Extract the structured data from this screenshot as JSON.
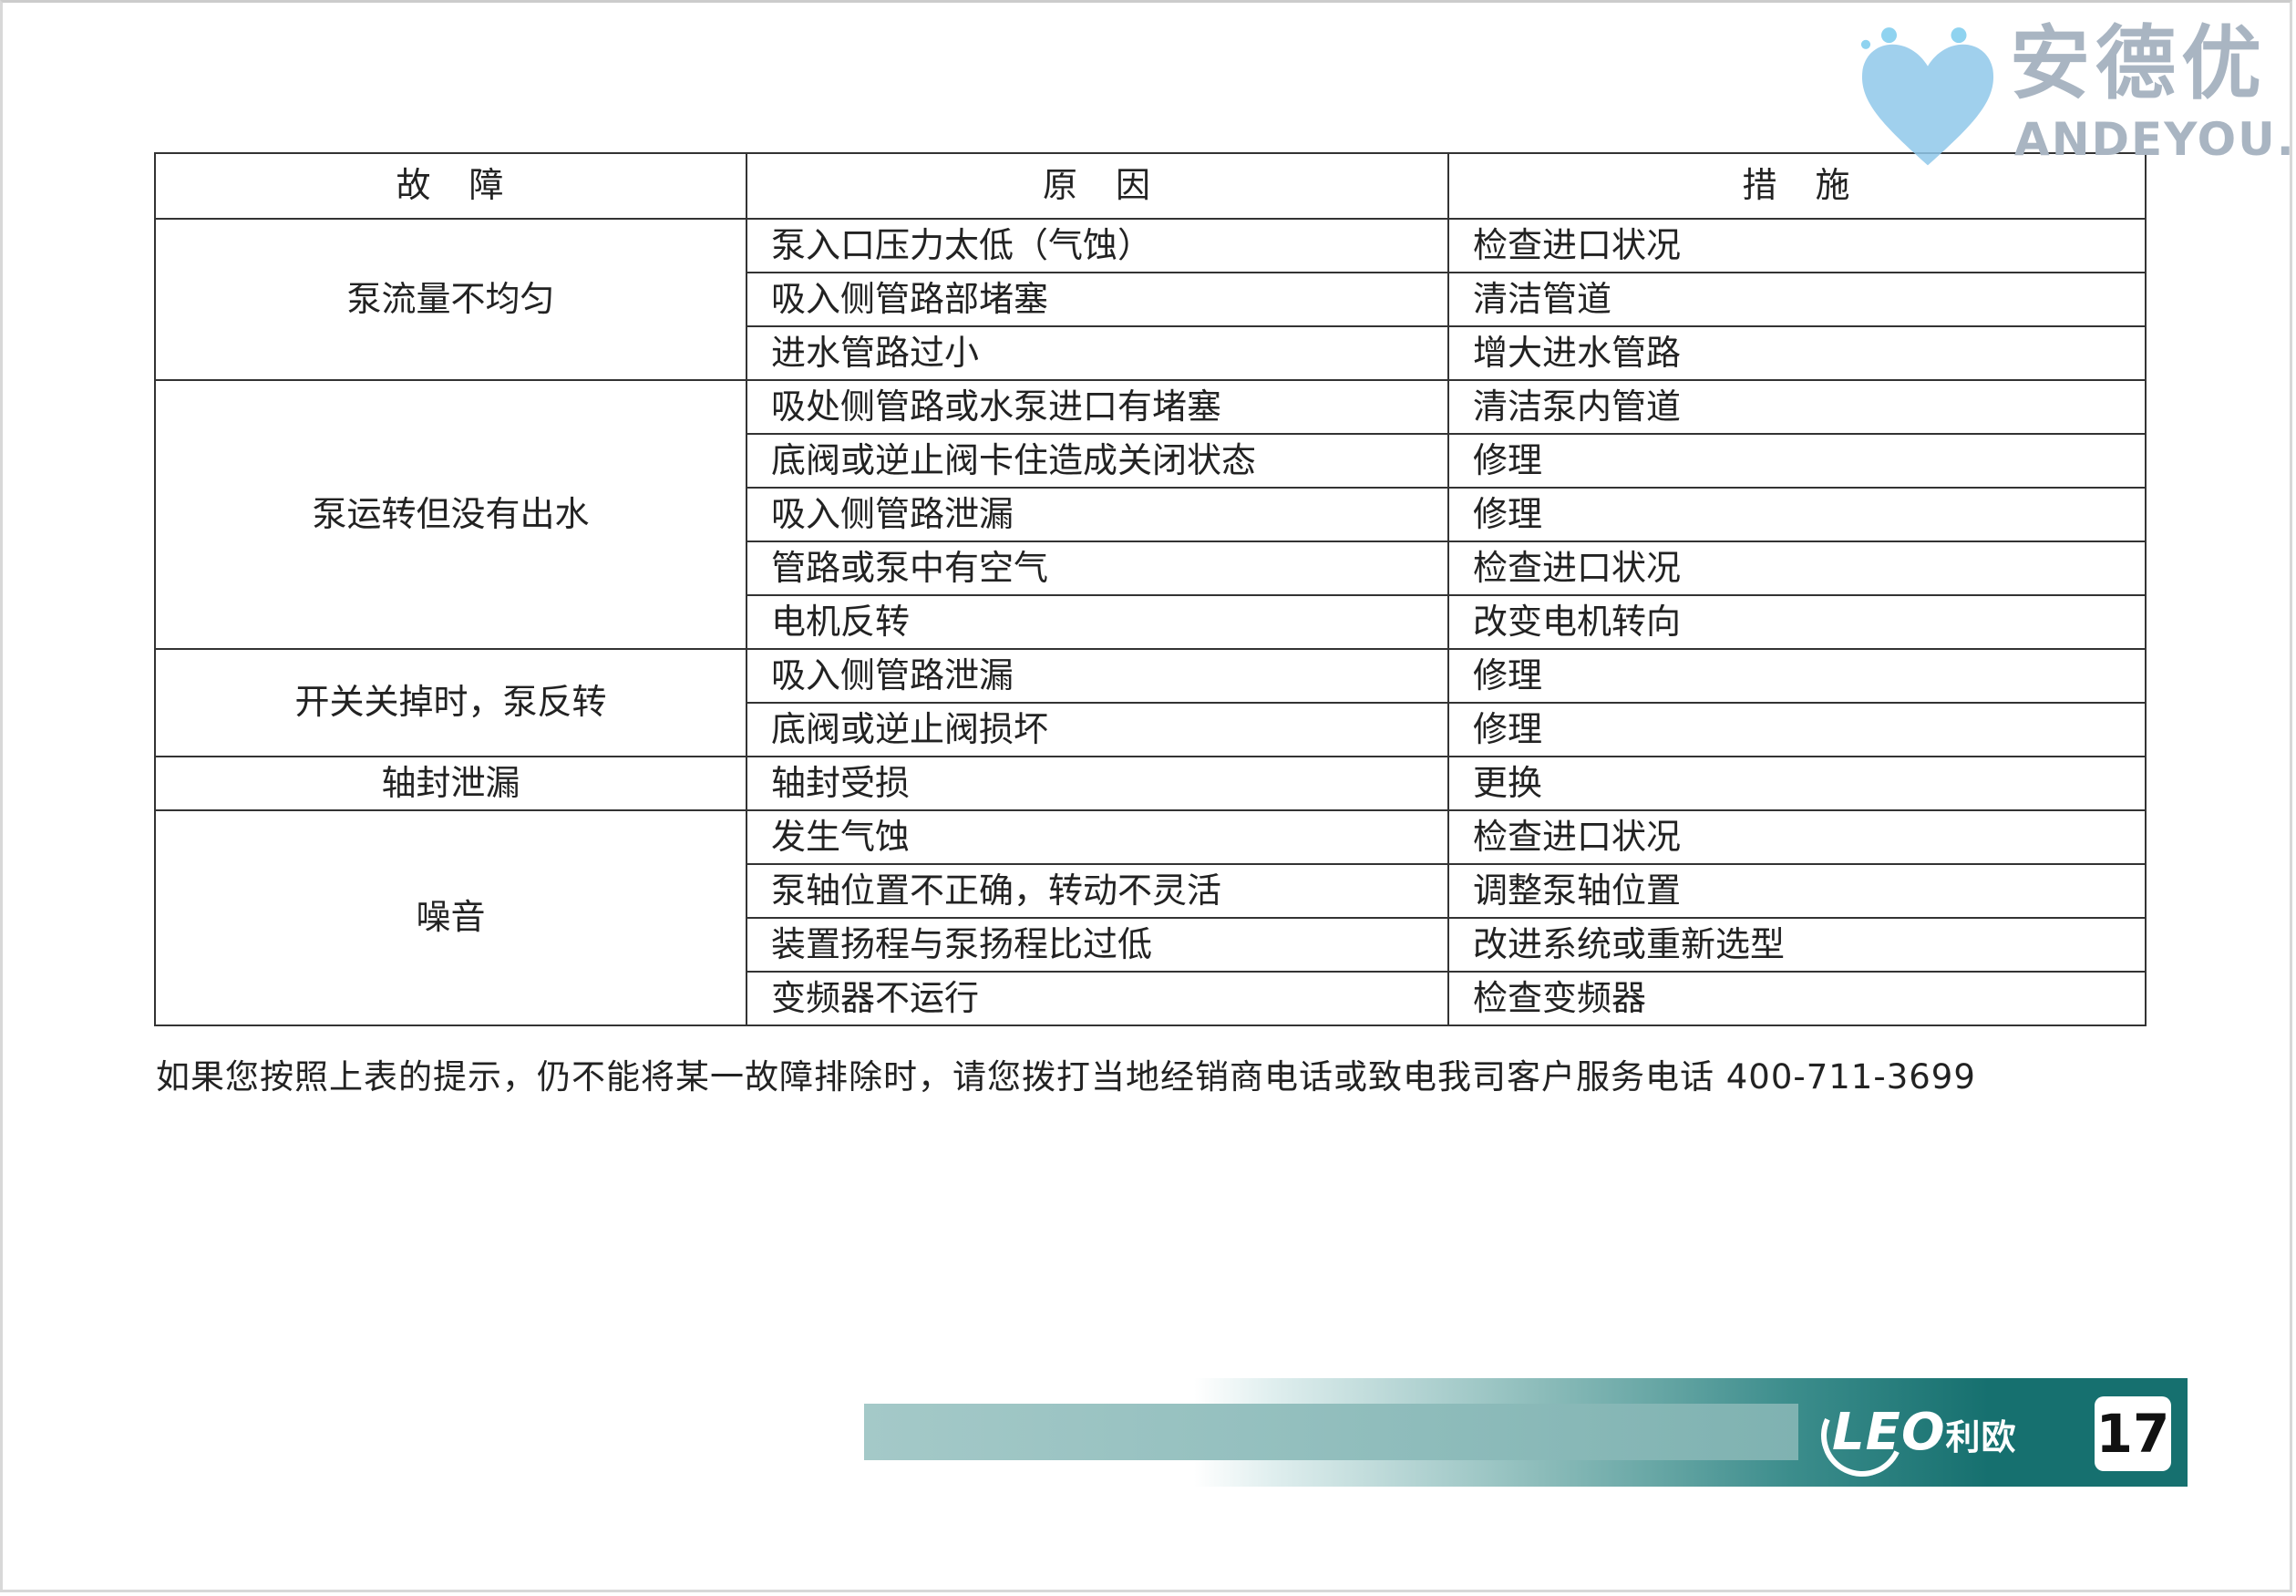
{
  "table": {
    "headers": [
      "故　障",
      "原　因",
      "措　施"
    ],
    "groups": [
      {
        "fault": "泵流量不均匀",
        "rows": [
          [
            "泵入口压力太低（气蚀）",
            "检查进口状况"
          ],
          [
            "吸入侧管路部堵塞",
            "清洁管道"
          ],
          [
            "进水管路过小",
            "增大进水管路"
          ]
        ]
      },
      {
        "fault": "泵运转但没有出水",
        "rows": [
          [
            "吸处侧管路或水泵进口有堵塞",
            "清洁泵内管道"
          ],
          [
            "底阀或逆止阀卡住造成关闭状态",
            "修理"
          ],
          [
            "吸入侧管路泄漏",
            "修理"
          ],
          [
            "管路或泵中有空气",
            "检查进口状况"
          ],
          [
            "电机反转",
            "改变电机转向"
          ]
        ]
      },
      {
        "fault": "开关关掉时，泵反转",
        "rows": [
          [
            "吸入侧管路泄漏",
            "修理"
          ],
          [
            "底阀或逆止阀损坏",
            "修理"
          ]
        ]
      },
      {
        "fault": "轴封泄漏",
        "rows": [
          [
            "轴封受损",
            "更换"
          ]
        ]
      },
      {
        "fault": "噪音",
        "rows": [
          [
            "发生气蚀",
            "检查进口状况"
          ],
          [
            "泵轴位置不正确，转动不灵活",
            "调整泵轴位置"
          ],
          [
            "装置扬程与泵扬程比过低",
            "改进系统或重新选型"
          ],
          [
            "变频器不运行",
            "检查变频器"
          ]
        ]
      }
    ]
  },
  "note": "如果您按照上表的提示，仍不能将某一故障排除时，请您拨打当地经销商电话或致电我司客户服务电话 400-711-3699",
  "watermark": {
    "cn": "安德优",
    "en": "ANDEYOU.CN"
  },
  "footer": {
    "logo": "LEO",
    "logo_cn": "利欧",
    "page_number": "17",
    "accent": "#16706f"
  }
}
